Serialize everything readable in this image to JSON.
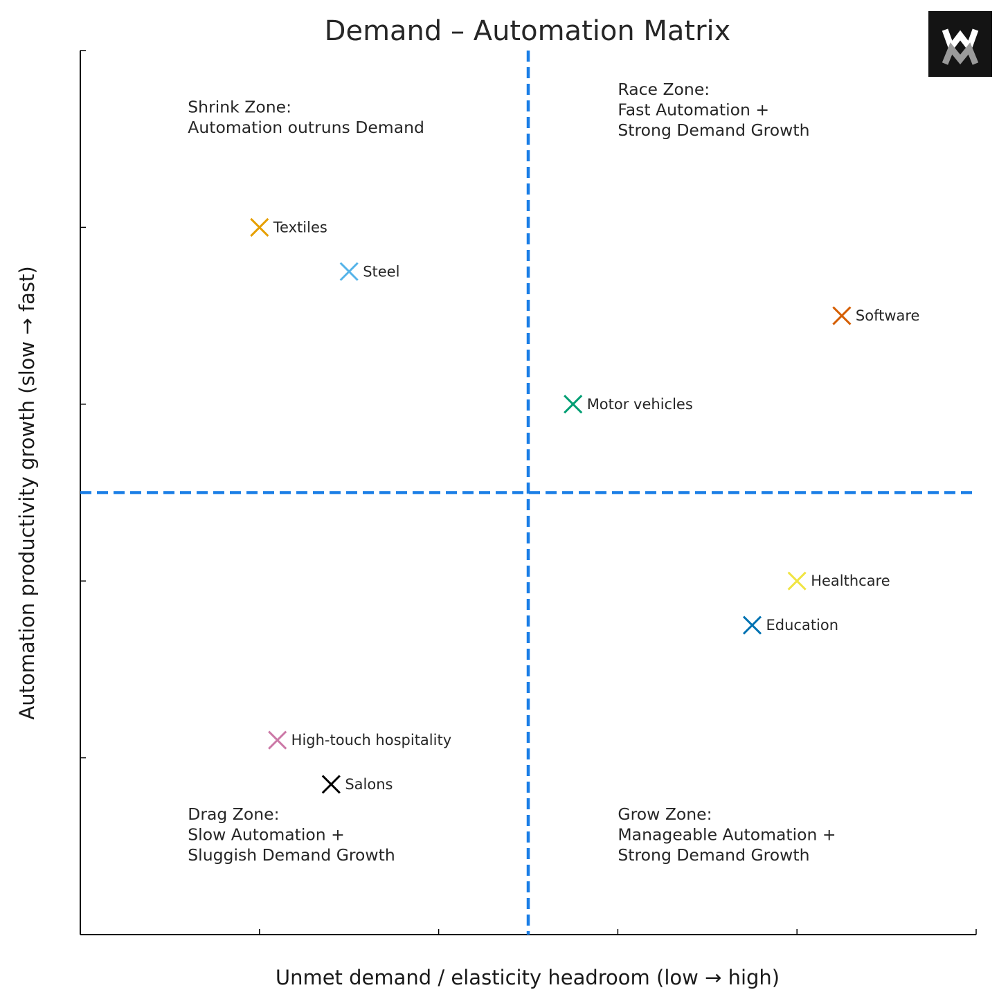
{
  "chart_data": {
    "type": "scatter",
    "title": "Demand – Automation Matrix",
    "xlabel": "Unmet demand / elasticity headroom (low → high)",
    "ylabel": "Automation productivity growth (slow → fast)",
    "xlim": [
      0,
      10
    ],
    "ylim": [
      0,
      10
    ],
    "x_ticks": [
      0,
      2,
      4,
      6,
      8,
      10
    ],
    "y_ticks": [
      0,
      2,
      4,
      6,
      8,
      10
    ],
    "tick_labels_shown": false,
    "grid": false,
    "divider_x": 5,
    "divider_y": 5,
    "divider_color": "#1a7ee6",
    "marker": "x",
    "points": [
      {
        "label": "Textiles",
        "x": 2.0,
        "y": 8.0,
        "color": "#e69f00"
      },
      {
        "label": "Steel",
        "x": 3.0,
        "y": 7.5,
        "color": "#56b4e9"
      },
      {
        "label": "Software",
        "x": 8.5,
        "y": 7.0,
        "color": "#d55e00"
      },
      {
        "label": "Motor vehicles",
        "x": 5.5,
        "y": 6.0,
        "color": "#009e73"
      },
      {
        "label": "Healthcare",
        "x": 8.0,
        "y": 4.0,
        "color": "#f0e442"
      },
      {
        "label": "Education",
        "x": 7.5,
        "y": 3.5,
        "color": "#0072b2"
      },
      {
        "label": "High-touch hospitality",
        "x": 2.2,
        "y": 2.2,
        "color": "#cc79a7"
      },
      {
        "label": "Salons",
        "x": 2.8,
        "y": 1.7,
        "color": "#000000"
      }
    ],
    "annotations": [
      {
        "name": "shrink-zone",
        "x": 1.2,
        "y": 9.3,
        "lines": [
          "Shrink Zone:",
          "Automation outruns Demand"
        ]
      },
      {
        "name": "race-zone",
        "x": 6.0,
        "y": 9.5,
        "lines": [
          "Race Zone:",
          "Fast Automation +",
          "Strong Demand Growth"
        ]
      },
      {
        "name": "drag-zone",
        "x": 1.2,
        "y": 1.3,
        "lines": [
          "Drag Zone:",
          "Slow Automation +",
          "Sluggish Demand Growth"
        ]
      },
      {
        "name": "grow-zone",
        "x": 6.0,
        "y": 1.3,
        "lines": [
          "Grow Zone:",
          "Manageable Automation +",
          "Strong Demand Growth"
        ]
      }
    ]
  },
  "logo": {
    "text": "W M"
  }
}
